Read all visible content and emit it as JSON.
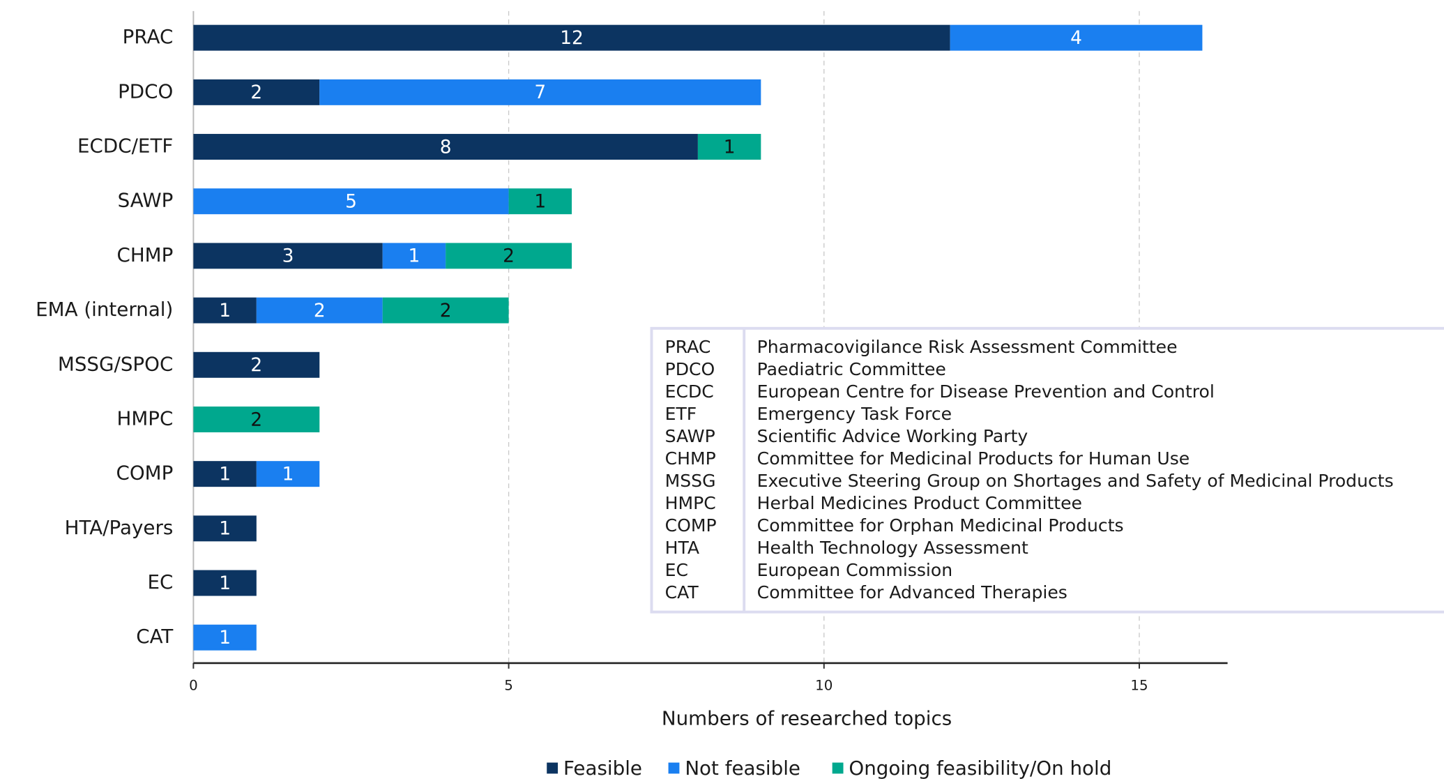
{
  "chart_data": {
    "type": "stacked-bar-horizontal",
    "categories": [
      "PRAC",
      "PDCO",
      "ECDC/ETF",
      "SAWP",
      "CHMP",
      "EMA (internal)",
      "MSSG/SPOC",
      "HMPC",
      "COMP",
      "HTA/Payers",
      "EC",
      "CAT"
    ],
    "series": [
      {
        "name": "Feasible",
        "color": "#0c3461",
        "values": [
          12,
          2,
          8,
          null,
          3,
          1,
          2,
          null,
          1,
          1,
          1,
          null
        ]
      },
      {
        "name": "Not feasible",
        "color": "#1a7ff0",
        "values": [
          4,
          7,
          null,
          5,
          1,
          2,
          null,
          null,
          1,
          null,
          null,
          1
        ]
      },
      {
        "name": "Ongoing feasibility/On hold",
        "color": "#00a88e",
        "values": [
          null,
          null,
          1,
          1,
          2,
          2,
          null,
          2,
          null,
          null,
          null,
          null
        ]
      }
    ],
    "xlabel": "Numbers of researched topics",
    "xlim": [
      0,
      16.4
    ],
    "xticks": [
      0,
      5,
      10,
      15
    ],
    "grid": true,
    "legend": "bottom"
  },
  "abbreviation_table": {
    "rows": [
      [
        "PRAC",
        "Pharmacovigilance Risk Assessment Committee"
      ],
      [
        "PDCO",
        "Paediatric Committee"
      ],
      [
        "ECDC",
        "European Centre for Disease Prevention and Control"
      ],
      [
        "ETF",
        "Emergency Task Force"
      ],
      [
        "SAWP",
        "Scientific Advice Working Party"
      ],
      [
        "CHMP",
        "Committee for Medicinal Products for Human Use"
      ],
      [
        "MSSG",
        "Executive Steering Group on Shortages and Safety of Medicinal Products"
      ],
      [
        "HMPC",
        "Herbal Medicines Product Committee"
      ],
      [
        "COMP",
        "Committee for Orphan Medicinal Products"
      ],
      [
        "HTA",
        "Health Technology Assessment"
      ],
      [
        "EC",
        "European Commission"
      ],
      [
        "CAT",
        "Committee for Advanced Therapies"
      ]
    ]
  }
}
